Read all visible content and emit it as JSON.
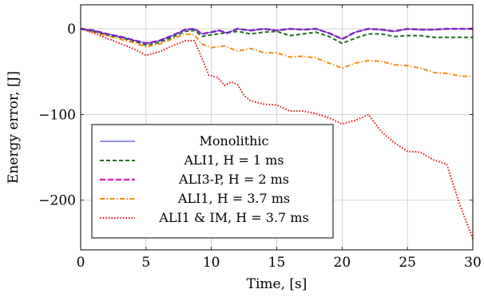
{
  "chart_data": {
    "type": "line",
    "xlabel": "Time, [s]",
    "ylabel": "Energy error, [J]",
    "xlim": [
      0,
      30
    ],
    "ylim": [
      -258,
      28
    ],
    "xticks": [
      0,
      5,
      10,
      15,
      20,
      25,
      30
    ],
    "yticks": [
      -200,
      -100,
      0
    ],
    "xtick_labels": [
      "0",
      "5",
      "10",
      "15",
      "20",
      "25",
      "30"
    ],
    "ytick_labels": [
      "−200",
      "−100",
      "0"
    ],
    "grid": true,
    "legend_position": "bottom-left",
    "series": [
      {
        "name": "Monolithic",
        "color": "#2a2ad6",
        "style": "solid",
        "points": [
          [
            0,
            0
          ],
          [
            1,
            -2
          ],
          [
            2,
            -6
          ],
          [
            3,
            -9
          ],
          [
            4,
            -13
          ],
          [
            5,
            -17
          ],
          [
            6,
            -14
          ],
          [
            7,
            -8
          ],
          [
            8,
            -1
          ],
          [
            8.7,
            0
          ],
          [
            9.3,
            -6
          ],
          [
            10,
            -4
          ],
          [
            10.6,
            -2
          ],
          [
            11.2,
            -5
          ],
          [
            12,
            0
          ],
          [
            13,
            -2
          ],
          [
            14,
            0
          ],
          [
            15,
            -2
          ],
          [
            16,
            0
          ],
          [
            17,
            -1
          ],
          [
            18,
            0
          ],
          [
            19,
            -5
          ],
          [
            20,
            -12
          ],
          [
            21,
            -4
          ],
          [
            22,
            0
          ],
          [
            23,
            -1
          ],
          [
            24,
            -3
          ],
          [
            25,
            0
          ],
          [
            26,
            -1
          ],
          [
            27,
            -1
          ],
          [
            28,
            0
          ],
          [
            29,
            0
          ],
          [
            30,
            0
          ]
        ]
      },
      {
        "name": "ALI1, H = 1 ms",
        "color": "#1f6e1f",
        "style": "dashed",
        "points": [
          [
            0,
            0
          ],
          [
            1,
            -3
          ],
          [
            2,
            -7
          ],
          [
            3,
            -10
          ],
          [
            4,
            -14
          ],
          [
            5,
            -19
          ],
          [
            6,
            -16
          ],
          [
            7,
            -10
          ],
          [
            8,
            -3
          ],
          [
            8.7,
            -2
          ],
          [
            9.3,
            -9
          ],
          [
            10,
            -7
          ],
          [
            11,
            -5
          ],
          [
            12,
            -3
          ],
          [
            13,
            -6
          ],
          [
            14,
            -4
          ],
          [
            15,
            -3
          ],
          [
            16,
            -8
          ],
          [
            17,
            -6
          ],
          [
            18,
            -4
          ],
          [
            19,
            -9
          ],
          [
            20,
            -17
          ],
          [
            21,
            -11
          ],
          [
            22,
            -6
          ],
          [
            23,
            -6
          ],
          [
            24,
            -9
          ],
          [
            25,
            -8
          ],
          [
            26,
            -8
          ],
          [
            27,
            -10
          ],
          [
            28,
            -10
          ],
          [
            29,
            -10
          ],
          [
            30,
            -10
          ]
        ]
      },
      {
        "name": "ALI3-P, H = 2 ms",
        "color": "#d62ab4",
        "style": "longdash",
        "points": [
          [
            0,
            0
          ],
          [
            1,
            -2
          ],
          [
            2,
            -6
          ],
          [
            3,
            -9
          ],
          [
            4,
            -13
          ],
          [
            5,
            -17
          ],
          [
            6,
            -14
          ],
          [
            7,
            -8
          ],
          [
            8,
            -1
          ],
          [
            8.7,
            0
          ],
          [
            9.3,
            -6
          ],
          [
            10,
            -4
          ],
          [
            10.6,
            -2
          ],
          [
            11.2,
            -5
          ],
          [
            12,
            0
          ],
          [
            13,
            -2
          ],
          [
            14,
            0
          ],
          [
            15,
            -2
          ],
          [
            16,
            0
          ],
          [
            17,
            -1
          ],
          [
            18,
            0
          ],
          [
            19,
            -5
          ],
          [
            20,
            -12
          ],
          [
            21,
            -4
          ],
          [
            22,
            0
          ],
          [
            23,
            -1
          ],
          [
            24,
            -3
          ],
          [
            25,
            0
          ],
          [
            26,
            -1
          ],
          [
            27,
            -1
          ],
          [
            28,
            0
          ],
          [
            29,
            0
          ],
          [
            30,
            0
          ]
        ]
      },
      {
        "name": "ALI1, H = 3.7 ms",
        "color": "#f08c14",
        "style": "dashdot",
        "points": [
          [
            0,
            0
          ],
          [
            1,
            -4
          ],
          [
            2,
            -8
          ],
          [
            3,
            -12
          ],
          [
            4,
            -16
          ],
          [
            5,
            -21
          ],
          [
            6,
            -18
          ],
          [
            7,
            -12
          ],
          [
            8,
            -6
          ],
          [
            8.7,
            -7
          ],
          [
            9.3,
            -18
          ],
          [
            10,
            -22
          ],
          [
            11,
            -20
          ],
          [
            12,
            -26
          ],
          [
            13,
            -23
          ],
          [
            14,
            -28
          ],
          [
            15,
            -28
          ],
          [
            16,
            -33
          ],
          [
            17,
            -32
          ],
          [
            18,
            -34
          ],
          [
            19,
            -40
          ],
          [
            20,
            -46
          ],
          [
            21,
            -40
          ],
          [
            22,
            -37
          ],
          [
            23,
            -38
          ],
          [
            24,
            -42
          ],
          [
            25,
            -43
          ],
          [
            26,
            -46
          ],
          [
            27,
            -51
          ],
          [
            28,
            -52
          ],
          [
            29,
            -55
          ],
          [
            30,
            -56
          ]
        ]
      },
      {
        "name": "ALI1 & IM, H = 3.7 ms",
        "color": "#e01b1b",
        "style": "dotted",
        "points": [
          [
            0,
            0
          ],
          [
            1,
            -5
          ],
          [
            2,
            -11
          ],
          [
            3,
            -17
          ],
          [
            4,
            -23
          ],
          [
            5,
            -31
          ],
          [
            6,
            -27
          ],
          [
            7,
            -20
          ],
          [
            8,
            -14
          ],
          [
            8.7,
            -14
          ],
          [
            9.3,
            -35
          ],
          [
            9.8,
            -54
          ],
          [
            10.5,
            -57
          ],
          [
            11,
            -66
          ],
          [
            11.5,
            -62
          ],
          [
            12,
            -65
          ],
          [
            12.5,
            -78
          ],
          [
            13,
            -84
          ],
          [
            14,
            -88
          ],
          [
            15,
            -89
          ],
          [
            16,
            -96
          ],
          [
            17,
            -96
          ],
          [
            18,
            -99
          ],
          [
            19,
            -104
          ],
          [
            20,
            -111
          ],
          [
            21,
            -107
          ],
          [
            22,
            -100
          ],
          [
            23,
            -120
          ],
          [
            24,
            -133
          ],
          [
            25,
            -143
          ],
          [
            26,
            -144
          ],
          [
            27,
            -153
          ],
          [
            28,
            -158
          ],
          [
            29,
            -205
          ],
          [
            30,
            -245
          ]
        ]
      }
    ]
  }
}
